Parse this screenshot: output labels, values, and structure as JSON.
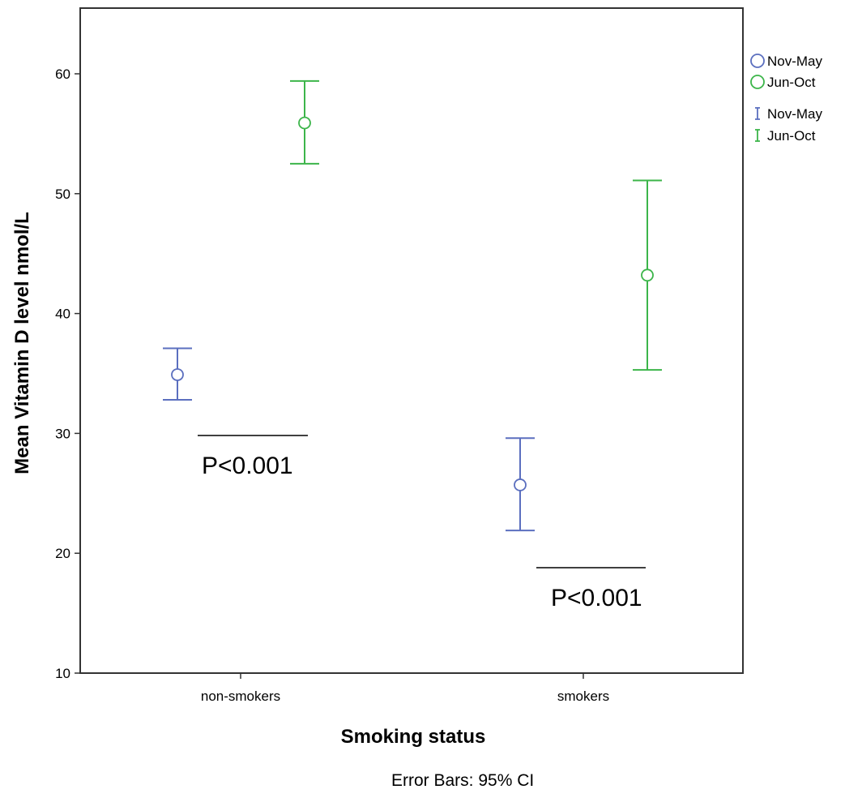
{
  "chart_data": {
    "type": "scatter",
    "subtype": "error-bar",
    "categories": [
      "non-smokers",
      "smokers"
    ],
    "xlabel": "Smoking status",
    "ylabel": "Mean Vitamin D level nmol/L",
    "ylim": [
      10,
      66
    ],
    "yticks": [
      10,
      20,
      30,
      40,
      50,
      60
    ],
    "grid": false,
    "legend_position": "right",
    "series": [
      {
        "name": "Nov-May",
        "color": "#5b6fbf",
        "points": [
          {
            "category": "non-smokers",
            "mean": 34.9,
            "ci_low": 32.8,
            "ci_high": 37.1
          },
          {
            "category": "smokers",
            "mean": 25.7,
            "ci_low": 21.9,
            "ci_high": 29.6
          }
        ]
      },
      {
        "name": "Jun-Oct",
        "color": "#3cb54a",
        "points": [
          {
            "category": "non-smokers",
            "mean": 55.9,
            "ci_low": 52.5,
            "ci_high": 59.4
          },
          {
            "category": "smokers",
            "mean": 43.2,
            "ci_low": 35.3,
            "ci_high": 51.1
          }
        ]
      }
    ],
    "legend": {
      "markers": [
        {
          "label": "Nov-May",
          "symbol": "circle",
          "color": "#5b6fbf"
        },
        {
          "label": "Jun-Oct",
          "symbol": "circle",
          "color": "#3cb54a"
        }
      ],
      "bars": [
        {
          "label": "Nov-May",
          "symbol": "error-bar",
          "color": "#5b6fbf"
        },
        {
          "label": "Jun-Oct",
          "symbol": "error-bar",
          "color": "#3cb54a"
        }
      ]
    },
    "annotations": [
      {
        "text": "P<0.001",
        "category": "non-smokers"
      },
      {
        "text": "P<0.001",
        "category": "smokers"
      }
    ],
    "footnote": "Error Bars: 95% CI"
  }
}
